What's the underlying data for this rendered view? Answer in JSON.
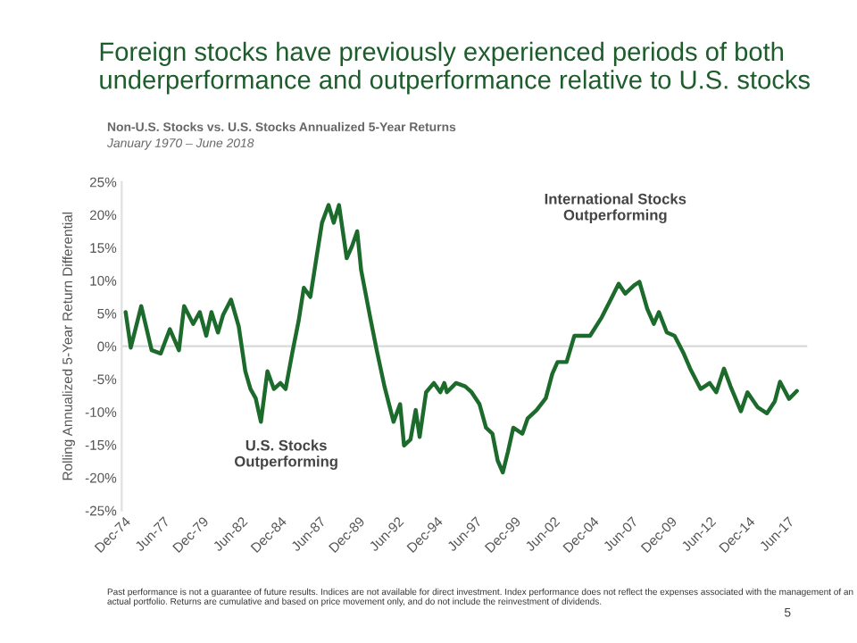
{
  "chart_data": {
    "type": "line",
    "title": "Foreign stocks have previously experienced periods of both underperformance and outperformance relative to U.S. stocks",
    "subtitle": "Non-U.S. Stocks vs. U.S. Stocks Annualized 5-Year Returns",
    "ylabel": "Rolling Annualized 5-Year Return Differential",
    "annotations": [
      "January 1970 – June 2018",
      "U.S. Stocks\nOutperforming",
      "International Stocks\nOutperforming",
      "Past performance is not a guarantee of future results. Indices are not available for direct investment. Index performance does not reflect the expenses associated with the management of an actual portfolio. Returns are cumulative and based on price movement only, and do not include the reinvestment of dividends.",
      "5"
    ],
    "x": [
      "1975-01",
      "1975-05",
      "1976-01",
      "1976-09",
      "1977-04",
      "1977-11",
      "1978-06",
      "1978-10",
      "1979-05",
      "1979-10",
      "1980-03",
      "1980-07",
      "1980-12",
      "1981-04",
      "1981-10",
      "1982-04",
      "1982-09",
      "1983-01",
      "1983-05",
      "1983-09",
      "1984-02",
      "1984-07",
      "1984-12",
      "1985-04",
      "1985-09",
      "1986-02",
      "1986-06",
      "1986-11",
      "1987-04",
      "1987-08",
      "1988-01",
      "1988-05",
      "1988-09",
      "1989-03",
      "1989-07",
      "1989-11",
      "1990-02",
      "1990-09",
      "1991-02",
      "1991-08",
      "1992-03",
      "1992-08",
      "1992-11",
      "1993-04",
      "1993-08",
      "1993-11",
      "1994-04",
      "1994-10",
      "1995-03",
      "1995-06",
      "1995-08",
      "1996-03",
      "1996-10",
      "1997-03",
      "1997-09",
      "1998-02",
      "1998-07",
      "1998-11",
      "1999-03",
      "1999-07",
      "1999-11",
      "2000-06",
      "2000-10",
      "2001-05",
      "2001-12",
      "2002-05",
      "2002-09",
      "2003-04",
      "2003-10",
      "2004-03",
      "2004-10",
      "2005-07",
      "2006-03",
      "2006-08",
      "2007-01",
      "2007-08",
      "2007-12",
      "2008-06",
      "2008-11",
      "2009-03",
      "2009-09",
      "2010-03",
      "2010-10",
      "2011-03",
      "2011-11",
      "2012-06",
      "2012-11",
      "2013-05",
      "2013-10",
      "2014-06",
      "2014-11",
      "2015-07",
      "2016-02",
      "2016-08",
      "2016-12",
      "2017-07",
      "2018-01"
    ],
    "series": [
      {
        "color": "#1d6b2c",
        "values": [
          5.2,
          -0.2,
          6.1,
          -0.6,
          -1.1,
          2.6,
          -0.6,
          6.1,
          3.4,
          5.2,
          1.6,
          5.2,
          2.1,
          4.8,
          7.1,
          3.0,
          -3.8,
          -6.5,
          -7.9,
          -11.5,
          -3.8,
          -6.5,
          -5.6,
          -6.5,
          -1.1,
          3.9,
          8.9,
          7.5,
          13.8,
          18.8,
          21.5,
          18.8,
          21.5,
          13.4,
          15.2,
          17.5,
          11.6,
          4.4,
          -0.6,
          -6.1,
          -11.5,
          -8.8,
          -15.1,
          -14.2,
          -9.7,
          -13.8,
          -7.0,
          -5.6,
          -7.0,
          -5.6,
          -7.0,
          -5.6,
          -6.1,
          -7.0,
          -8.8,
          -12.4,
          -13.3,
          -17.4,
          -19.2,
          -16.0,
          -12.4,
          -13.3,
          -11.0,
          -9.7,
          -7.9,
          -4.2,
          -2.4,
          -2.4,
          1.6,
          1.6,
          1.6,
          4.4,
          7.5,
          9.5,
          8.0,
          9.3,
          9.8,
          5.7,
          3.4,
          5.2,
          2.1,
          1.6,
          -1.1,
          -3.4,
          -6.5,
          -5.6,
          -7.0,
          -3.4,
          -6.1,
          -9.9,
          -7.0,
          -9.3,
          -10.2,
          -8.4,
          -5.4,
          -8.0,
          -6.8
        ]
      }
    ],
    "xlim": [
      "1974-10",
      "2018-09"
    ],
    "xticks": [
      {
        "value": "1974-12",
        "label": "Dec-74"
      },
      {
        "value": "1977-06",
        "label": "Jun-77"
      },
      {
        "value": "1979-12",
        "label": "Dec-79"
      },
      {
        "value": "1982-06",
        "label": "Jun-82"
      },
      {
        "value": "1984-12",
        "label": "Dec-84"
      },
      {
        "value": "1987-06",
        "label": "Jun-87"
      },
      {
        "value": "1989-12",
        "label": "Dec-89"
      },
      {
        "value": "1992-06",
        "label": "Jun-92"
      },
      {
        "value": "1994-12",
        "label": "Dec-94"
      },
      {
        "value": "1997-06",
        "label": "Jun-97"
      },
      {
        "value": "1999-12",
        "label": "Dec-99"
      },
      {
        "value": "2002-06",
        "label": "Jun-02"
      },
      {
        "value": "2004-12",
        "label": "Dec-04"
      },
      {
        "value": "2007-06",
        "label": "Jun-07"
      },
      {
        "value": "2009-12",
        "label": "Dec-09"
      },
      {
        "value": "2012-06",
        "label": "Jun-12"
      },
      {
        "value": "2014-12",
        "label": "Dec-14"
      },
      {
        "value": "2017-06",
        "label": "Jun-17"
      }
    ],
    "ylim": [
      -25,
      25
    ],
    "yticks": [
      {
        "value": 25,
        "label": "25%"
      },
      {
        "value": 20,
        "label": "20%"
      },
      {
        "value": 15,
        "label": "15%"
      },
      {
        "value": 10,
        "label": "10%"
      },
      {
        "value": 5,
        "label": "5%"
      },
      {
        "value": 0,
        "label": "0%"
      },
      {
        "value": -5,
        "label": "-5%"
      },
      {
        "value": -10,
        "label": "-10%"
      },
      {
        "value": -15,
        "label": "-15%"
      },
      {
        "value": -20,
        "label": "-20%"
      },
      {
        "value": -25,
        "label": "-25%"
      }
    ],
    "ref_lines": [
      {
        "axis": "y",
        "value": 0,
        "label": null,
        "color": "#d9d9d9"
      }
    ],
    "grid": false,
    "legend": false,
    "marker": "none",
    "line_style": "solid"
  }
}
